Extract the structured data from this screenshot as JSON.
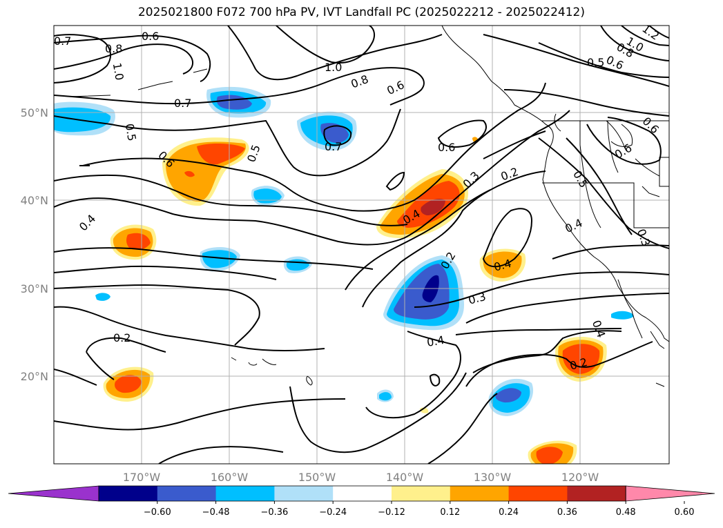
{
  "title": "2025021800 F072 700 hPa PV, IVT Landfall PC (2025022212 - 2025022412)",
  "map": {
    "lon_labels": [
      "170°W",
      "160°W",
      "150°W",
      "140°W",
      "130°W",
      "120°W"
    ],
    "lat_labels": [
      "50°N",
      "40°N",
      "30°N",
      "20°N"
    ],
    "contour_labels": [
      "0.7",
      "0.6",
      "0.8",
      "1.0",
      "1.0",
      "0.8",
      "0.6",
      "0.5",
      "0.6",
      "0.8",
      "1.0",
      "1.2",
      "0.7",
      "0.5",
      "0.6",
      "0.5",
      "0.7",
      "0.6",
      "0.3",
      "0.2",
      "0.6",
      "0.5",
      "0.4",
      "0.4",
      "0.4",
      "0.3",
      "0.2",
      "0.4",
      "0.3",
      "0.4",
      "0.4",
      "0.2",
      "0.2",
      "0.6"
    ]
  },
  "colorbar": {
    "ticks": [
      "−0.60",
      "−0.48",
      "−0.36",
      "−0.24",
      "−0.12",
      "0.12",
      "0.24",
      "0.36",
      "0.48",
      "0.60"
    ],
    "colors": [
      "#9a32cd",
      "#00008b",
      "#3a5bcd",
      "#00bfff",
      "#b0e0f8",
      "#ffffff",
      "#fff08c",
      "#ffa500",
      "#ff4500",
      "#b22222",
      "#ff88aa"
    ]
  }
}
